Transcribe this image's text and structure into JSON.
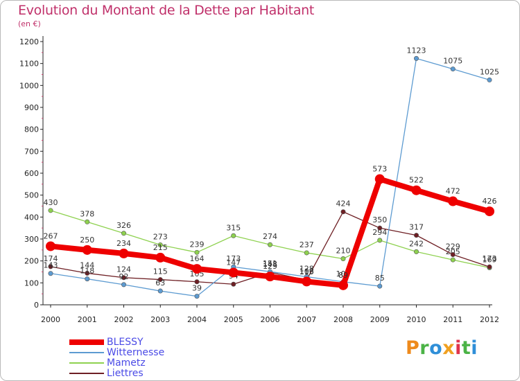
{
  "chart_data": {
    "type": "line",
    "title": "Evolution du Montant de la Dette par Habitant",
    "subtitle": "(en €)",
    "categories": [
      "2000",
      "2001",
      "2002",
      "2003",
      "2004",
      "2005",
      "2006",
      "2007",
      "2008",
      "2009",
      "2010",
      "2011",
      "2012"
    ],
    "ylim": [
      0,
      1200
    ],
    "yticks": [
      "0",
      "100",
      "200",
      "300",
      "400",
      "500",
      "600",
      "700",
      "800",
      "900",
      "1000",
      "1100",
      "1200"
    ],
    "grid": false,
    "legend_position": "bottom-left",
    "series": [
      {
        "name": "Mametz",
        "color": "#8ed14f",
        "values": [
          430,
          378,
          326,
          273,
          239,
          315,
          274,
          237,
          210,
          294,
          242,
          205,
          169
        ],
        "labels": [
          "430",
          "378",
          "326",
          "273",
          "239",
          "315",
          "274",
          "237",
          "210",
          "294",
          "242",
          "205",
          "169"
        ]
      },
      {
        "name": "Liettres",
        "color": "#6e1f24",
        "values": [
          174,
          144,
          124,
          115,
          105,
          94,
          148,
          113,
          424,
          350,
          317,
          229,
          173
        ],
        "labels": [
          "174",
          "144",
          "124",
          "115",
          "105",
          "94",
          "148",
          "113",
          "424",
          "350",
          "317",
          "229",
          "173"
        ]
      },
      {
        "name": "Witternesse",
        "color": "#5d9bd1",
        "values": [
          143,
          118,
          92,
          63,
          39,
          173,
          151,
          128,
          105,
          85,
          1123,
          1075,
          1025
        ],
        "labels": [
          "143",
          "118",
          "92",
          "63",
          "39",
          "173",
          "151",
          "128",
          "105",
          "85",
          "1123",
          "1075",
          "1025"
        ]
      },
      {
        "name": "BLESSY",
        "color": "#ee0000",
        "values": [
          267,
          250,
          234,
          215,
          164,
          147,
          129,
          106,
          89,
          573,
          522,
          472,
          426
        ],
        "labels": [
          "267",
          "250",
          "234",
          "215",
          "164",
          "147",
          "129",
          "106",
          "89",
          "573",
          "522",
          "472",
          "426"
        ]
      }
    ]
  },
  "legend": [
    {
      "name": "BLESSY",
      "color": "#ee0000",
      "text_color": "#4a4ae6",
      "thick": true
    },
    {
      "name": "Witternesse",
      "color": "#5d9bd1",
      "text_color": "#4a4ae6",
      "thick": false
    },
    {
      "name": "Mametz",
      "color": "#8ed14f",
      "text_color": "#4a4ae6",
      "thick": false
    },
    {
      "name": "Liettres",
      "color": "#6e1f24",
      "text_color": "#4a4ae6",
      "thick": false
    }
  ],
  "brand": {
    "letters": [
      "P",
      "r",
      "o",
      "x",
      "i",
      "t",
      "i"
    ],
    "colors": [
      "#ee8a1c",
      "#4bb346",
      "#2f8fd8",
      "#f0a020",
      "#e0344c",
      "#4bb346",
      "#2f8fd8"
    ]
  }
}
